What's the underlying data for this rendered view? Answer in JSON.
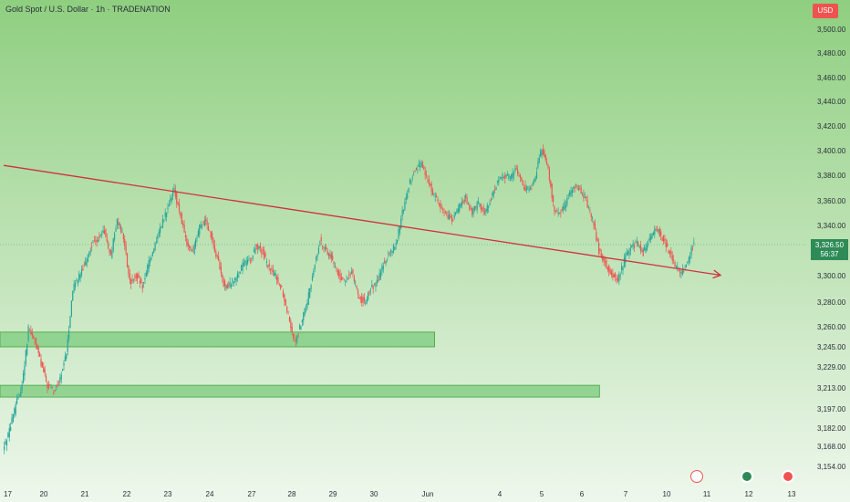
{
  "header": {
    "title": "Gold Spot / U.S. Dollar · 1h · TRADENATION",
    "currency": "USD"
  },
  "price_badge": {
    "price": "3,326.50",
    "countdown": "56:37"
  },
  "colors": {
    "background_top": "#8fcf80",
    "background_bottom": "#eef7ec",
    "candle_up": "#26a69a",
    "candle_down": "#ef5350",
    "trendline": "#d0313d",
    "zone_fill": "#7ccb7c",
    "zone_stroke": "#3ea53e",
    "text": "#2a2e39"
  },
  "chart_data": {
    "type": "candlestick",
    "title": "Gold Spot / U.S. Dollar · 1h · TRADENATION",
    "ylim": [
      3140,
      3520
    ],
    "y_ticks": [
      "3,500.00",
      "3,480.00",
      "3,460.00",
      "3,440.00",
      "3,420.00",
      "3,400.00",
      "3,380.00",
      "3,360.00",
      "3,340.00",
      "3,300.00",
      "3,280.00",
      "3,260.00",
      "3,245.00",
      "3,229.00",
      "3,213.00",
      "3,197.00",
      "3,182.00",
      "3,168.00",
      "3,154.00"
    ],
    "x_ticks": [
      "17",
      "20",
      "21",
      "22",
      "23",
      "24",
      "27",
      "28",
      "29",
      "30",
      "Jun",
      "4",
      "5",
      "6",
      "7",
      "10",
      "11",
      "12",
      "13"
    ],
    "last_price": 3326.5,
    "path": [
      [
        0,
        3165
      ],
      [
        1,
        3180
      ],
      [
        2,
        3200
      ],
      [
        3,
        3215
      ],
      [
        4,
        3258
      ],
      [
        5,
        3250
      ],
      [
        6,
        3232
      ],
      [
        7,
        3215
      ],
      [
        8,
        3210
      ],
      [
        9,
        3220
      ],
      [
        10,
        3240
      ],
      [
        11,
        3290
      ],
      [
        12,
        3300
      ],
      [
        13,
        3310
      ],
      [
        14,
        3325
      ],
      [
        15,
        3330
      ],
      [
        16,
        3335
      ],
      [
        17,
        3315
      ],
      [
        18,
        3345
      ],
      [
        19,
        3330
      ],
      [
        20,
        3295
      ],
      [
        21,
        3300
      ],
      [
        22,
        3292
      ],
      [
        23,
        3310
      ],
      [
        24,
        3325
      ],
      [
        25,
        3340
      ],
      [
        26,
        3355
      ],
      [
        27,
        3368
      ],
      [
        28,
        3348
      ],
      [
        29,
        3325
      ],
      [
        30,
        3320
      ],
      [
        31,
        3338
      ],
      [
        32,
        3345
      ],
      [
        33,
        3328
      ],
      [
        34,
        3310
      ],
      [
        35,
        3290
      ],
      [
        36,
        3295
      ],
      [
        37,
        3300
      ],
      [
        38,
        3310
      ],
      [
        39,
        3312
      ],
      [
        40,
        3325
      ],
      [
        41,
        3318
      ],
      [
        42,
        3305
      ],
      [
        43,
        3300
      ],
      [
        44,
        3290
      ],
      [
        45,
        3270
      ],
      [
        46,
        3248
      ],
      [
        47,
        3262
      ],
      [
        48,
        3280
      ],
      [
        49,
        3305
      ],
      [
        50,
        3328
      ],
      [
        51,
        3320
      ],
      [
        52,
        3312
      ],
      [
        53,
        3300
      ],
      [
        54,
        3295
      ],
      [
        55,
        3305
      ],
      [
        56,
        3285
      ],
      [
        57,
        3280
      ],
      [
        58,
        3290
      ],
      [
        59,
        3295
      ],
      [
        60,
        3310
      ],
      [
        61,
        3318
      ],
      [
        62,
        3325
      ],
      [
        63,
        3350
      ],
      [
        64,
        3372
      ],
      [
        65,
        3385
      ],
      [
        66,
        3390
      ],
      [
        67,
        3375
      ],
      [
        68,
        3365
      ],
      [
        69,
        3356
      ],
      [
        70,
        3348
      ],
      [
        71,
        3345
      ],
      [
        72,
        3355
      ],
      [
        73,
        3362
      ],
      [
        74,
        3350
      ],
      [
        75,
        3358
      ],
      [
        76,
        3350
      ],
      [
        77,
        3362
      ],
      [
        78,
        3375
      ],
      [
        79,
        3380
      ],
      [
        80,
        3378
      ],
      [
        81,
        3385
      ],
      [
        82,
        3372
      ],
      [
        83,
        3368
      ],
      [
        84,
        3380
      ],
      [
        85,
        3402
      ],
      [
        86,
        3385
      ],
      [
        87,
        3350
      ],
      [
        88,
        3352
      ],
      [
        89,
        3360
      ],
      [
        90,
        3372
      ],
      [
        91,
        3370
      ],
      [
        92,
        3360
      ],
      [
        93,
        3345
      ],
      [
        94,
        3320
      ],
      [
        95,
        3310
      ],
      [
        96,
        3302
      ],
      [
        97,
        3296
      ],
      [
        98,
        3312
      ],
      [
        99,
        3322
      ],
      [
        100,
        3325
      ],
      [
        101,
        3318
      ],
      [
        102,
        3330
      ],
      [
        103,
        3338
      ],
      [
        104,
        3330
      ],
      [
        105,
        3320
      ],
      [
        106,
        3308
      ],
      [
        107,
        3302
      ],
      [
        108,
        3312
      ],
      [
        109,
        3326.5
      ]
    ],
    "trendline": {
      "from": [
        0,
        3388
      ],
      "to": [
        120,
        3295
      ]
    },
    "zones": [
      {
        "y_low": 3245,
        "y_high": 3256,
        "x_from": -1,
        "x_to": 68
      },
      {
        "y_low": 3206,
        "y_high": 3215,
        "x_from": -1,
        "x_to": 94
      }
    ]
  }
}
